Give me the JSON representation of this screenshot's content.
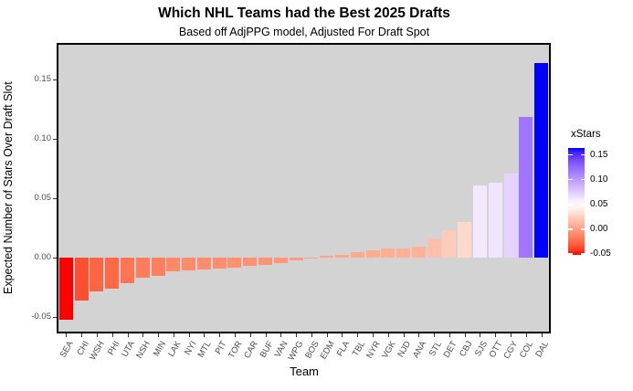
{
  "chart_data": {
    "type": "bar",
    "title": "Which NHL Teams had the Best 2025 Drafts",
    "subtitle": "Based off AdjPPG model, Adjusted For Draft Spot",
    "xlabel": "Team",
    "ylabel": "Expected Number of Stars Over Draft Slot",
    "categories": [
      "SEA",
      "CHI",
      "WSH",
      "PHI",
      "UTA",
      "NSH",
      "MIN",
      "LAK",
      "NYI",
      "MTL",
      "PIT",
      "TOR",
      "CAR",
      "BUF",
      "VAN",
      "WPG",
      "BOS",
      "EDM",
      "FLA",
      "TBL",
      "NYR",
      "VGK",
      "NJD",
      "ANA",
      "STL",
      "DET",
      "CBJ",
      "SJS",
      "OTT",
      "CGY",
      "COL",
      "DAL"
    ],
    "values": [
      -0.052,
      -0.036,
      -0.028,
      -0.026,
      -0.021,
      -0.017,
      -0.015,
      -0.011,
      -0.0105,
      -0.01,
      -0.009,
      -0.008,
      -0.007,
      -0.006,
      -0.0045,
      -0.002,
      0.0005,
      0.0015,
      0.0025,
      0.005,
      0.006,
      0.0075,
      0.008,
      0.009,
      0.016,
      0.023,
      0.03,
      0.061,
      0.063,
      0.071,
      0.118,
      0.164
    ],
    "ylim": [
      -0.062,
      0.179
    ],
    "yticks": [
      0.15,
      0.1,
      0.05,
      0.0,
      -0.05
    ],
    "ytick_labels": [
      "0.15",
      "0.10",
      "0.05",
      "0.00",
      "-0.05"
    ],
    "grid": false,
    "panel_bg": "#d3d3d3",
    "color_scale": {
      "low": "#ff0000",
      "mid": "#ffffff",
      "high": "#0000ff",
      "domain": [
        -0.052,
        0.164
      ],
      "midpoint": 0.05
    }
  },
  "legend": {
    "title": "xStars",
    "position": "right",
    "tick_values": [
      0.15,
      0.1,
      0.05,
      0.0,
      -0.05
    ],
    "tick_labels": [
      "0.15",
      "0.10",
      "0.05",
      "0.00",
      "-0.05"
    ],
    "domain": [
      -0.052,
      0.164
    ]
  }
}
